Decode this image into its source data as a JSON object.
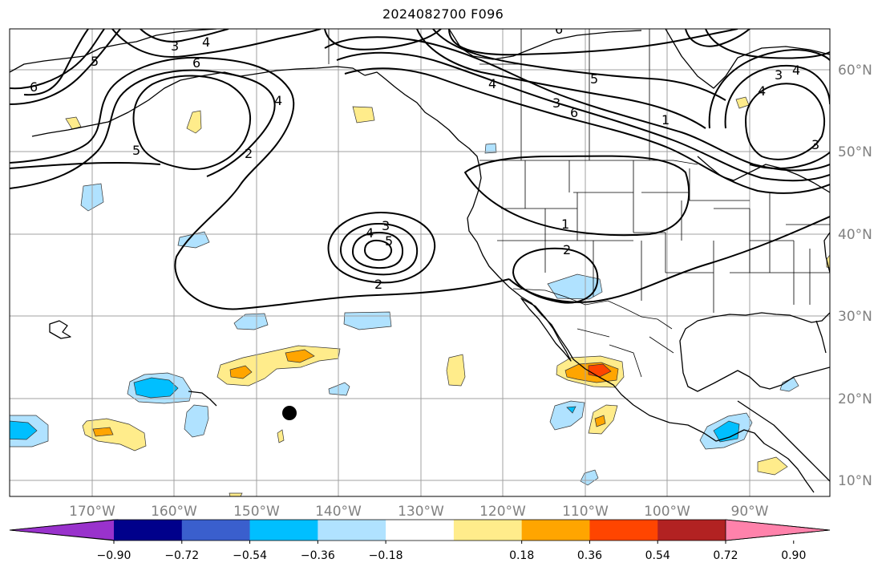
{
  "title": "2024082700 F096",
  "map": {
    "projection": "cylindrical",
    "lon_labels": [
      "170°W",
      "160°W",
      "150°W",
      "140°W",
      "130°W",
      "120°W",
      "110°W",
      "100°W",
      "90°W"
    ],
    "lat_labels": [
      "60°N",
      "50°N",
      "40°N",
      "30°N",
      "20°N",
      "10°N"
    ],
    "gridline_color": "#a0a0a0",
    "marker": {
      "description": "black dot",
      "color": "#000000"
    },
    "contour_labels": [
      "3",
      "4",
      "5",
      "6",
      "6",
      "5",
      "4",
      "2",
      "6",
      "4",
      "3",
      "6",
      "5",
      "4",
      "3",
      "4",
      "3",
      "1",
      "3",
      "4",
      "5",
      "2",
      "1",
      "2"
    ]
  },
  "colorbar": {
    "colors": [
      "#9932cc",
      "#00008b",
      "#3a5fcd",
      "#00bfff",
      "#b0e2ff",
      "#ffffff",
      "#ffec8b",
      "#ffa500",
      "#ff4500",
      "#b22222",
      "#ff82ab"
    ],
    "tick_labels": [
      "−0.90",
      "−0.72",
      "−0.54",
      "−0.36",
      "−0.18",
      "0.18",
      "0.36",
      "0.54",
      "0.72",
      "0.90"
    ],
    "extend": "both"
  }
}
